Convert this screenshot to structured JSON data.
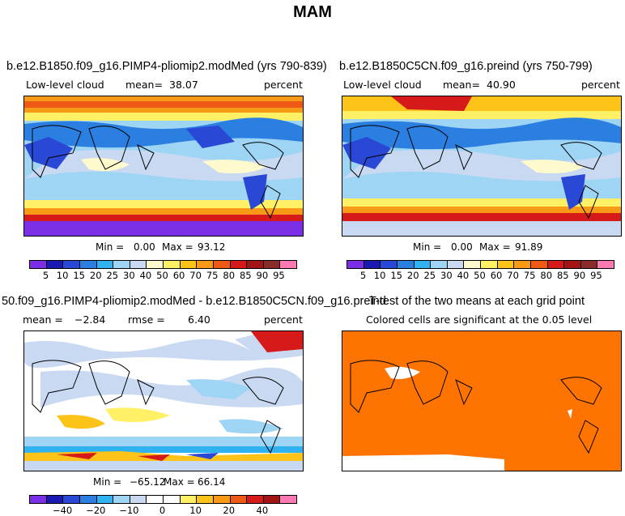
{
  "figure_title": "MAM",
  "colors": {
    "abs_scale": [
      "#7a2ee6",
      "#1a1ab3",
      "#2948d6",
      "#2b7fe0",
      "#2fb2ef",
      "#9ed5f4",
      "#c9d9f2",
      "#fffacd",
      "#fff066",
      "#fcc419",
      "#f99a16",
      "#ee5a16",
      "#d61a1a",
      "#a31515",
      "#8a2b2b",
      "#ff7ab3"
    ],
    "diff_scale": [
      "#7a2ee6",
      "#1a1ab3",
      "#2948d6",
      "#2b7fe0",
      "#2fb2ef",
      "#9ed5f4",
      "#c9d9f2",
      "#ffffff",
      "#ffffff",
      "#fff066",
      "#fcc419",
      "#f99a16",
      "#ee5a16",
      "#d61a1a",
      "#a31515",
      "#ff7ab3"
    ],
    "ttest_fill": "#ff7400",
    "land_line": "#000000"
  },
  "panels": {
    "p1": {
      "title": "b.e12.B1850.f09_g16.PIMP4-pliomip2.modMed (yrs 790-839)",
      "var_label": "Low-level cloud",
      "mean_label": "mean=",
      "mean_value": "38.07",
      "units": "percent",
      "min_label": "Min =",
      "min_value": "0.00",
      "max_label": "Max =",
      "max_value": "93.12",
      "colorbar_ticks": [
        "5",
        "10",
        "15",
        "20",
        "25",
        "30",
        "40",
        "50",
        "60",
        "70",
        "75",
        "80",
        "85",
        "90",
        "95"
      ]
    },
    "p2": {
      "title": "b.e12.B1850C5CN.f09_g16.preind (yrs 750-799)",
      "var_label": "Low-level cloud",
      "mean_label": "mean=",
      "mean_value": "40.90",
      "units": "percent",
      "min_label": "Min =",
      "min_value": "0.00",
      "max_label": "Max =",
      "max_value": "91.89",
      "colorbar_ticks": [
        "5",
        "10",
        "15",
        "20",
        "25",
        "30",
        "40",
        "50",
        "60",
        "70",
        "75",
        "80",
        "85",
        "90",
        "95"
      ]
    },
    "p3": {
      "title": "50.f09_g16.PIMP4-pliomip2.modMed - b.e12.B1850C5CN.f09_g16.preind",
      "mean_label": "mean =",
      "mean_value": "−2.84",
      "rmse_label": "rmse =",
      "rmse_value": "6.40",
      "units": "percent",
      "min_label": "Min =",
      "min_value": "−65.12",
      "max_label": "Max =",
      "max_value": "66.14",
      "colorbar_ticks": [
        "−40",
        "−20",
        "−10",
        "0",
        "10",
        "20",
        "40"
      ]
    },
    "p4": {
      "title": "T-test of the two means at each grid point",
      "subtitle": "Colored cells are significant at the 0.05 level"
    }
  }
}
